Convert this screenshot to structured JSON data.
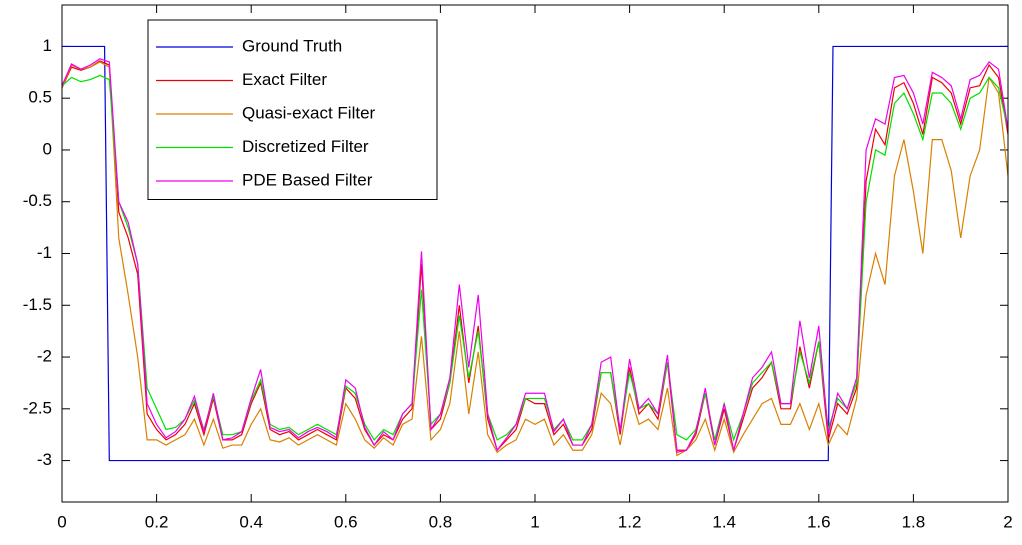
{
  "chart_data": {
    "type": "line",
    "xlim": [
      0,
      2
    ],
    "xticks": [
      0,
      0.2,
      0.4,
      0.6,
      0.8,
      1,
      1.2,
      1.4,
      1.6,
      1.8,
      2
    ],
    "ylim": [
      -3.4,
      1.4
    ],
    "yticks": [
      -3,
      -2.5,
      -2,
      -1.5,
      -1,
      -0.5,
      0,
      0.5,
      1
    ],
    "grid": false,
    "legend": "upper-left",
    "x": [
      0,
      0.02,
      0.04,
      0.06,
      0.08,
      0.1,
      0.12,
      0.14,
      0.16,
      0.18,
      0.2,
      0.22,
      0.24,
      0.26,
      0.28,
      0.3,
      0.32,
      0.34,
      0.36,
      0.38,
      0.4,
      0.42,
      0.44,
      0.46,
      0.48,
      0.5,
      0.52,
      0.54,
      0.56,
      0.58,
      0.6,
      0.62,
      0.64,
      0.66,
      0.68,
      0.7,
      0.72,
      0.74,
      0.76,
      0.78,
      0.8,
      0.82,
      0.84,
      0.86,
      0.88,
      0.9,
      0.92,
      0.94,
      0.96,
      0.98,
      1,
      1.02,
      1.04,
      1.06,
      1.08,
      1.1,
      1.12,
      1.14,
      1.16,
      1.18,
      1.2,
      1.22,
      1.24,
      1.26,
      1.28,
      1.3,
      1.32,
      1.34,
      1.36,
      1.38,
      1.4,
      1.42,
      1.44,
      1.46,
      1.48,
      1.5,
      1.52,
      1.54,
      1.56,
      1.58,
      1.6,
      1.62,
      1.64,
      1.66,
      1.68,
      1.7,
      1.72,
      1.74,
      1.76,
      1.78,
      1.8,
      1.82,
      1.84,
      1.86,
      1.88,
      1.9,
      1.92,
      1.94,
      1.96,
      1.98,
      2
    ],
    "series": [
      {
        "name": "Ground Truth",
        "color": "#0000dd",
        "x": [
          0,
          0.09,
          0.1,
          1.62,
          1.63,
          2
        ],
        "values": [
          1,
          1,
          -3,
          -3,
          1,
          1
        ]
      },
      {
        "name": "Exact Filter",
        "color": "#ee0000",
        "values": [
          0.6,
          0.8,
          0.77,
          0.8,
          0.86,
          0.82,
          -0.6,
          -0.85,
          -1.2,
          -2.55,
          -2.7,
          -2.8,
          -2.75,
          -2.65,
          -2.45,
          -2.75,
          -2.4,
          -2.8,
          -2.8,
          -2.75,
          -2.45,
          -2.25,
          -2.7,
          -2.75,
          -2.72,
          -2.8,
          -2.75,
          -2.7,
          -2.75,
          -2.8,
          -2.3,
          -2.4,
          -2.7,
          -2.85,
          -2.75,
          -2.8,
          -2.6,
          -2.5,
          -1.1,
          -2.7,
          -2.6,
          -2.25,
          -1.5,
          -2.25,
          -1.7,
          -2.6,
          -2.9,
          -2.8,
          -2.7,
          -2.4,
          -2.45,
          -2.45,
          -2.75,
          -2.65,
          -2.85,
          -2.85,
          -2.7,
          -2.15,
          -2.15,
          -2.75,
          -2.1,
          -2.55,
          -2.45,
          -2.6,
          -2.05,
          -2.9,
          -2.9,
          -2.75,
          -2.35,
          -2.85,
          -2.5,
          -2.9,
          -2.6,
          -2.3,
          -2.2,
          -2.05,
          -2.5,
          -2.5,
          -1.9,
          -2.3,
          -1.85,
          -2.8,
          -2.45,
          -2.55,
          -2.3,
          -0.3,
          0.2,
          0.05,
          0.6,
          0.65,
          0.45,
          0.15,
          0.7,
          0.65,
          0.55,
          0.25,
          0.6,
          0.62,
          0.82,
          0.7,
          0.15
        ]
      },
      {
        "name": "Quasi-exact Filter",
        "color": "#d98000",
        "values": [
          0.6,
          0.82,
          0.78,
          0.8,
          0.85,
          0.8,
          -0.85,
          -1.4,
          -2.0,
          -2.8,
          -2.8,
          -2.85,
          -2.8,
          -2.75,
          -2.6,
          -2.85,
          -2.6,
          -2.88,
          -2.85,
          -2.85,
          -2.65,
          -2.5,
          -2.8,
          -2.82,
          -2.78,
          -2.85,
          -2.8,
          -2.75,
          -2.8,
          -2.85,
          -2.45,
          -2.6,
          -2.8,
          -2.88,
          -2.78,
          -2.85,
          -2.65,
          -2.6,
          -1.8,
          -2.8,
          -2.7,
          -2.45,
          -1.75,
          -2.55,
          -1.95,
          -2.75,
          -2.92,
          -2.85,
          -2.8,
          -2.6,
          -2.65,
          -2.6,
          -2.85,
          -2.75,
          -2.9,
          -2.9,
          -2.75,
          -2.35,
          -2.45,
          -2.85,
          -2.35,
          -2.65,
          -2.6,
          -2.7,
          -2.3,
          -2.95,
          -2.9,
          -2.8,
          -2.6,
          -2.9,
          -2.6,
          -2.92,
          -2.75,
          -2.6,
          -2.45,
          -2.4,
          -2.65,
          -2.65,
          -2.45,
          -2.7,
          -2.45,
          -2.85,
          -2.65,
          -2.75,
          -2.4,
          -1.4,
          -1.0,
          -1.3,
          -0.25,
          0.1,
          -0.4,
          -1.0,
          0.1,
          0.1,
          -0.2,
          -0.85,
          -0.25,
          0.0,
          0.7,
          0.55,
          -0.25
        ]
      },
      {
        "name": "Discretized Filter",
        "color": "#00e000",
        "values": [
          0.62,
          0.7,
          0.66,
          0.68,
          0.72,
          0.68,
          -0.5,
          -0.75,
          -1.1,
          -2.3,
          -2.5,
          -2.7,
          -2.68,
          -2.6,
          -2.42,
          -2.7,
          -2.38,
          -2.75,
          -2.75,
          -2.72,
          -2.42,
          -2.22,
          -2.65,
          -2.7,
          -2.68,
          -2.75,
          -2.7,
          -2.65,
          -2.7,
          -2.75,
          -2.28,
          -2.35,
          -2.65,
          -2.8,
          -2.7,
          -2.75,
          -2.55,
          -2.45,
          -1.35,
          -2.65,
          -2.55,
          -2.25,
          -1.6,
          -2.2,
          -1.75,
          -2.55,
          -2.8,
          -2.75,
          -2.65,
          -2.4,
          -2.4,
          -2.4,
          -2.7,
          -2.6,
          -2.8,
          -2.8,
          -2.65,
          -2.15,
          -2.15,
          -2.7,
          -2.15,
          -2.5,
          -2.45,
          -2.55,
          -2.05,
          -2.75,
          -2.8,
          -2.7,
          -2.35,
          -2.8,
          -2.45,
          -2.8,
          -2.55,
          -2.25,
          -2.15,
          -2.05,
          -2.45,
          -2.45,
          -1.95,
          -2.25,
          -1.85,
          -2.7,
          -2.4,
          -2.5,
          -2.25,
          -0.5,
          0.0,
          -0.05,
          0.45,
          0.55,
          0.35,
          0.1,
          0.55,
          0.55,
          0.45,
          0.2,
          0.5,
          0.55,
          0.7,
          0.6,
          0.2
        ]
      },
      {
        "name": "PDE Based Filter",
        "color": "#ee00ee",
        "values": [
          0.62,
          0.83,
          0.78,
          0.82,
          0.88,
          0.85,
          -0.5,
          -0.7,
          -1.1,
          -2.45,
          -2.65,
          -2.78,
          -2.72,
          -2.6,
          -2.38,
          -2.72,
          -2.35,
          -2.8,
          -2.78,
          -2.72,
          -2.4,
          -2.12,
          -2.68,
          -2.72,
          -2.7,
          -2.78,
          -2.72,
          -2.68,
          -2.72,
          -2.78,
          -2.22,
          -2.3,
          -2.68,
          -2.85,
          -2.72,
          -2.8,
          -2.55,
          -2.45,
          -0.98,
          -2.7,
          -2.55,
          -2.2,
          -1.3,
          -2.1,
          -1.4,
          -2.55,
          -2.9,
          -2.78,
          -2.65,
          -2.35,
          -2.35,
          -2.35,
          -2.72,
          -2.6,
          -2.85,
          -2.85,
          -2.65,
          -2.05,
          -2.0,
          -2.72,
          -2.02,
          -2.5,
          -2.4,
          -2.55,
          -1.98,
          -2.92,
          -2.9,
          -2.72,
          -2.3,
          -2.85,
          -2.45,
          -2.9,
          -2.55,
          -2.2,
          -2.1,
          -1.95,
          -2.45,
          -2.45,
          -1.65,
          -2.2,
          -1.7,
          -2.75,
          -2.35,
          -2.5,
          -2.2,
          0.0,
          0.3,
          0.25,
          0.7,
          0.72,
          0.55,
          0.25,
          0.75,
          0.7,
          0.62,
          0.3,
          0.68,
          0.72,
          0.85,
          0.78,
          0.2
        ]
      }
    ]
  }
}
